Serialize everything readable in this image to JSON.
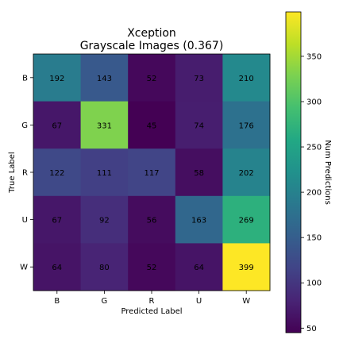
{
  "chart_data": {
    "type": "heatmap",
    "title": "Xception",
    "subtitle": "Grayscale Images (0.367)",
    "xlabel": "Predicted Label",
    "ylabel": "True Label",
    "x_categories": [
      "B",
      "G",
      "R",
      "U",
      "W"
    ],
    "y_categories": [
      "B",
      "G",
      "R",
      "U",
      "W"
    ],
    "values": [
      [
        192,
        143,
        52,
        73,
        210
      ],
      [
        67,
        331,
        45,
        74,
        176
      ],
      [
        122,
        111,
        117,
        58,
        202
      ],
      [
        67,
        92,
        56,
        163,
        269
      ],
      [
        64,
        80,
        52,
        64,
        399
      ]
    ],
    "colorbar": {
      "label": "Num Predictions",
      "ticks": [
        50,
        100,
        150,
        200,
        250,
        300,
        350
      ],
      "min": 45,
      "max": 399,
      "colormap": "viridis"
    }
  }
}
